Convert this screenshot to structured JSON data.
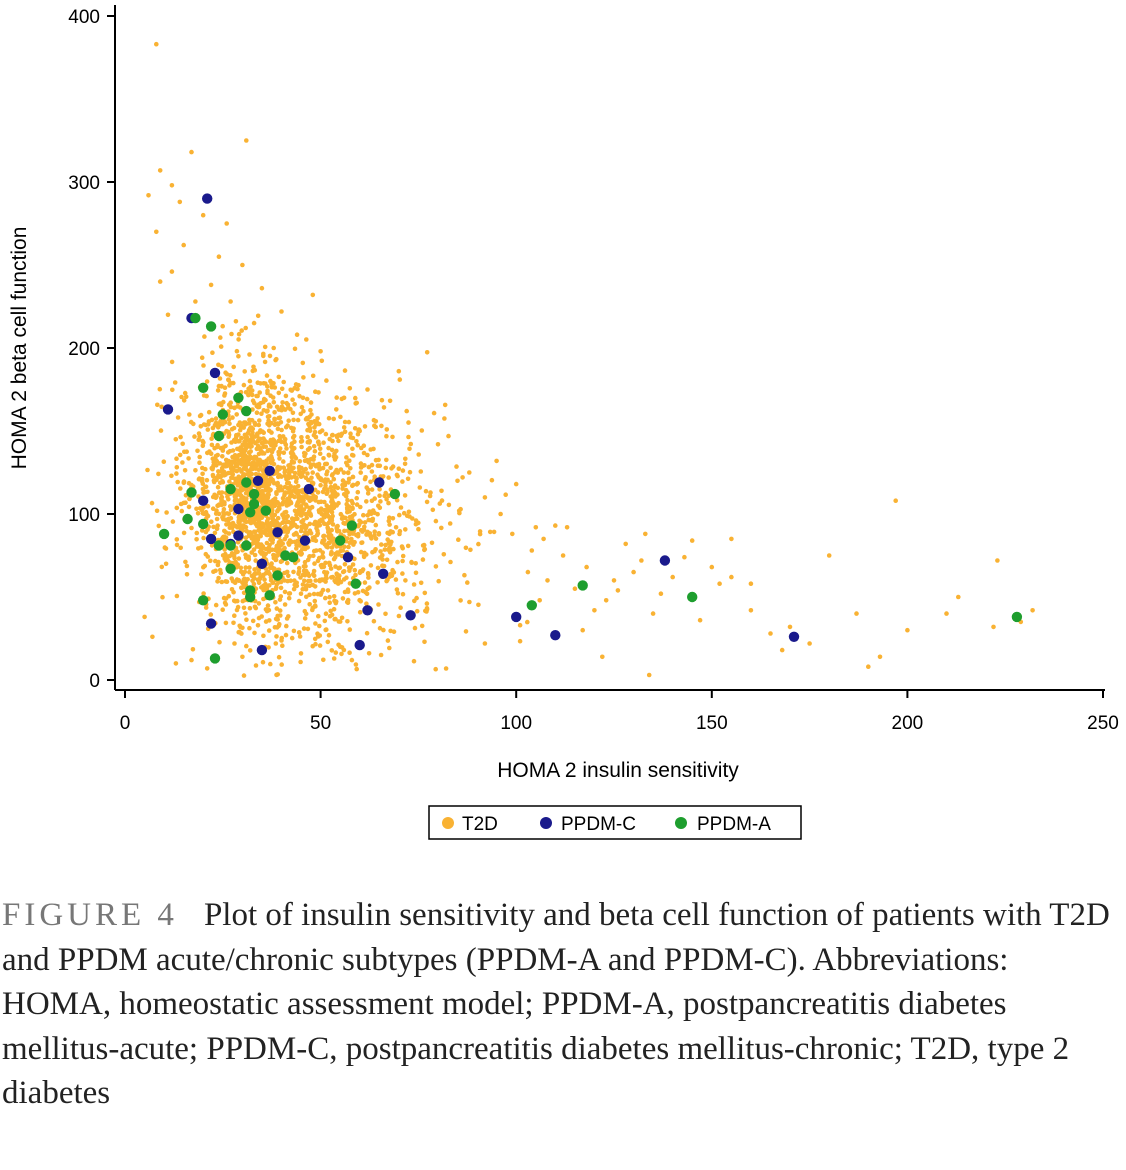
{
  "chart_data": {
    "type": "scatter",
    "title": "",
    "xlabel": "HOMA 2 insulin sensitivity",
    "ylabel": "HOMA 2 beta cell function",
    "xlim": [
      0,
      250
    ],
    "ylim": [
      0,
      400
    ],
    "xticks": [
      "0",
      "50",
      "100",
      "150",
      "200",
      "250"
    ],
    "yticks": [
      "0",
      "100",
      "200",
      "300",
      "400"
    ],
    "legend_position": "bottom-center",
    "series": [
      {
        "name": "T2D",
        "color": "#f9b233",
        "cloud": {
          "n": 2600,
          "center": [
            38,
            105
          ],
          "spread": [
            14,
            38
          ]
        },
        "points": [
          [
            8,
            383
          ],
          [
            31,
            325
          ],
          [
            17,
            318
          ],
          [
            9,
            307
          ],
          [
            12,
            298
          ],
          [
            6,
            292
          ],
          [
            14,
            288
          ],
          [
            20,
            280
          ],
          [
            26,
            275
          ],
          [
            8,
            270
          ],
          [
            15,
            262
          ],
          [
            24,
            255
          ],
          [
            30,
            250
          ],
          [
            12,
            246
          ],
          [
            9,
            240
          ],
          [
            22,
            238
          ],
          [
            35,
            236
          ],
          [
            48,
            232
          ],
          [
            40,
            222
          ],
          [
            18,
            228
          ],
          [
            27,
            228
          ],
          [
            11,
            220
          ],
          [
            33,
            215
          ],
          [
            44,
            208
          ],
          [
            50,
            198
          ],
          [
            38,
            200
          ],
          [
            29,
            195
          ],
          [
            70,
            186
          ],
          [
            62,
            175
          ],
          [
            56,
            170
          ],
          [
            72,
            162
          ],
          [
            60,
            150
          ],
          [
            80,
            142
          ],
          [
            85,
            120
          ],
          [
            92,
            110
          ],
          [
            95,
            132
          ],
          [
            88,
            125
          ],
          [
            100,
            118
          ],
          [
            96,
            100
          ],
          [
            99,
            88
          ],
          [
            104,
            78
          ],
          [
            103,
            65
          ],
          [
            105,
            92
          ],
          [
            107,
            85
          ],
          [
            110,
            93
          ],
          [
            113,
            92
          ],
          [
            112,
            75
          ],
          [
            108,
            60
          ],
          [
            106,
            48
          ],
          [
            115,
            55
          ],
          [
            118,
            68
          ],
          [
            120,
            42
          ],
          [
            123,
            48
          ],
          [
            125,
            60
          ],
          [
            128,
            82
          ],
          [
            126,
            54
          ],
          [
            130,
            65
          ],
          [
            132,
            72
          ],
          [
            135,
            40
          ],
          [
            133,
            88
          ],
          [
            140,
            62
          ],
          [
            145,
            84
          ],
          [
            150,
            68
          ],
          [
            152,
            58
          ],
          [
            155,
            85
          ],
          [
            160,
            42
          ],
          [
            165,
            28
          ],
          [
            168,
            18
          ],
          [
            170,
            32
          ],
          [
            180,
            75
          ],
          [
            187,
            40
          ],
          [
            190,
            8
          ],
          [
            193,
            14
          ],
          [
            197,
            108
          ],
          [
            200,
            30
          ],
          [
            210,
            40
          ],
          [
            213,
            50
          ],
          [
            222,
            32
          ],
          [
            223,
            72
          ],
          [
            229,
            35
          ],
          [
            232,
            42
          ],
          [
            5,
            38
          ],
          [
            7,
            26
          ],
          [
            13,
            10
          ],
          [
            17,
            12
          ],
          [
            21,
            7
          ],
          [
            30,
            14
          ],
          [
            45,
            16
          ],
          [
            55,
            20
          ],
          [
            58,
            12
          ],
          [
            134,
            3
          ],
          [
            155,
            62
          ],
          [
            143,
            74
          ],
          [
            137,
            52
          ],
          [
            147,
            36
          ],
          [
            160,
            58
          ],
          [
            117,
            30
          ],
          [
            101,
            33
          ],
          [
            92,
            22
          ],
          [
            122,
            14
          ],
          [
            175,
            22
          ]
        ]
      },
      {
        "name": "PPDM-C",
        "color": "#1a1a8c",
        "points": [
          [
            21,
            290
          ],
          [
            17,
            218
          ],
          [
            23,
            185
          ],
          [
            11,
            163
          ],
          [
            37,
            126
          ],
          [
            34,
            120
          ],
          [
            47,
            115
          ],
          [
            65,
            119
          ],
          [
            20,
            108
          ],
          [
            29,
            103
          ],
          [
            39,
            89
          ],
          [
            22,
            85
          ],
          [
            29,
            87
          ],
          [
            27,
            82
          ],
          [
            46,
            84
          ],
          [
            57,
            74
          ],
          [
            35,
            70
          ],
          [
            66,
            64
          ],
          [
            138,
            72
          ],
          [
            62,
            42
          ],
          [
            73,
            39
          ],
          [
            100,
            38
          ],
          [
            110,
            27
          ],
          [
            22,
            34
          ],
          [
            35,
            18
          ],
          [
            60,
            21
          ],
          [
            171,
            26
          ]
        ]
      },
      {
        "name": "PPDM-A",
        "color": "#1e9e2e",
        "points": [
          [
            18,
            218
          ],
          [
            22,
            213
          ],
          [
            20,
            176
          ],
          [
            29,
            170
          ],
          [
            31,
            162
          ],
          [
            25,
            160
          ],
          [
            24,
            147
          ],
          [
            69,
            112
          ],
          [
            17,
            113
          ],
          [
            27,
            115
          ],
          [
            33,
            112
          ],
          [
            36,
            102
          ],
          [
            32,
            101
          ],
          [
            16,
            97
          ],
          [
            20,
            94
          ],
          [
            58,
            93
          ],
          [
            10,
            88
          ],
          [
            55,
            84
          ],
          [
            24,
            81
          ],
          [
            27,
            81
          ],
          [
            31,
            81
          ],
          [
            41,
            75
          ],
          [
            43,
            74
          ],
          [
            27,
            67
          ],
          [
            39,
            63
          ],
          [
            59,
            58
          ],
          [
            117,
            57
          ],
          [
            145,
            50
          ],
          [
            20,
            48
          ],
          [
            32,
            50
          ],
          [
            37,
            51
          ],
          [
            32,
            54
          ],
          [
            104,
            45
          ],
          [
            228,
            38
          ],
          [
            23,
            13
          ],
          [
            33,
            106
          ],
          [
            31,
            119
          ]
        ]
      }
    ]
  },
  "legend": {
    "items": [
      {
        "label": "T2D",
        "color": "#f9b233"
      },
      {
        "label": "PPDM-C",
        "color": "#1a1a8c"
      },
      {
        "label": "PPDM-A",
        "color": "#1e9e2e"
      }
    ]
  },
  "caption": {
    "label": "FIGURE 4",
    "text": "Plot of insulin sensitivity and beta cell function of patients with T2D and PPDM acute/chronic subtypes (PPDM-A and PPDM-C). Abbreviations: HOMA, homeostatic assessment model; PPDM-A, postpancreatitis diabetes mellitus-acute; PPDM-C, postpancreatitis diabetes mellitus-chronic; T2D, type 2 diabetes"
  }
}
